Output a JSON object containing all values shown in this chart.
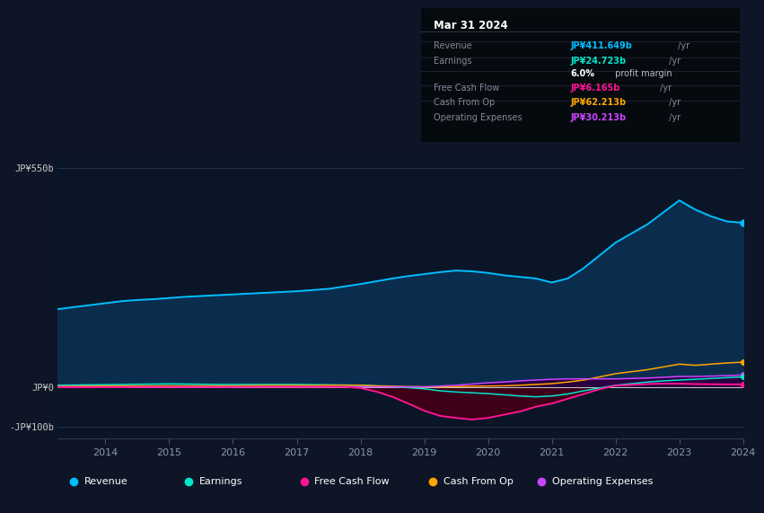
{
  "bg_color": "#0d1526",
  "plot_bg_color": "#0a1628",
  "grid_color": "#1e2f4a",
  "title_box": {
    "date": "Mar 31 2024",
    "rows": [
      {
        "label": "Revenue",
        "value": "JP¥411.649b",
        "suffix": " /yr",
        "value_color": "#00bfff"
      },
      {
        "label": "Earnings",
        "value": "JP¥24.723b",
        "suffix": " /yr",
        "value_color": "#00e5cc"
      },
      {
        "label": "",
        "value": "6.0%",
        "suffix": " profit margin",
        "value_color": "#ffffff"
      },
      {
        "label": "Free Cash Flow",
        "value": "JP¥6.165b",
        "suffix": " /yr",
        "value_color": "#ff1493"
      },
      {
        "label": "Cash From Op",
        "value": "JP¥62.213b",
        "suffix": " /yr",
        "value_color": "#ffa500"
      },
      {
        "label": "Operating Expenses",
        "value": "JP¥30.213b",
        "suffix": " /yr",
        "value_color": "#cc44ff"
      }
    ]
  },
  "years": [
    2013.25,
    2013.5,
    2013.75,
    2014.0,
    2014.25,
    2014.5,
    2014.75,
    2015.0,
    2015.25,
    2015.5,
    2015.75,
    2016.0,
    2016.25,
    2016.5,
    2016.75,
    2017.0,
    2017.25,
    2017.5,
    2017.75,
    2018.0,
    2018.25,
    2018.5,
    2018.75,
    2019.0,
    2019.25,
    2019.5,
    2019.75,
    2020.0,
    2020.25,
    2020.5,
    2020.75,
    2021.0,
    2021.25,
    2021.5,
    2021.75,
    2022.0,
    2022.25,
    2022.5,
    2022.75,
    2023.0,
    2023.25,
    2023.5,
    2023.75,
    2024.0
  ],
  "revenue": [
    195,
    200,
    205,
    210,
    215,
    218,
    220,
    223,
    226,
    228,
    230,
    232,
    234,
    236,
    238,
    240,
    243,
    246,
    252,
    258,
    265,
    272,
    278,
    283,
    288,
    292,
    290,
    286,
    280,
    276,
    272,
    262,
    272,
    298,
    330,
    362,
    385,
    408,
    438,
    468,
    445,
    428,
    415,
    412
  ],
  "earnings": [
    4,
    4.5,
    5,
    5.5,
    6,
    6.5,
    7,
    7.5,
    7,
    6.5,
    6,
    6,
    6,
    6,
    6,
    6,
    5.5,
    5,
    4.5,
    4,
    2,
    0,
    -2,
    -5,
    -10,
    -13,
    -15,
    -17,
    -20,
    -23,
    -25,
    -23,
    -18,
    -10,
    -3,
    4,
    8,
    12,
    15,
    17,
    19,
    21,
    23,
    25
  ],
  "free_cash_flow": [
    -1,
    -1,
    -1,
    -1,
    -1,
    -0.5,
    -0.5,
    -0.5,
    -0.5,
    -0.5,
    -0.5,
    -0.5,
    0,
    0,
    0,
    0,
    0,
    0,
    0,
    -3,
    -12,
    -25,
    -42,
    -60,
    -73,
    -78,
    -82,
    -78,
    -70,
    -62,
    -50,
    -42,
    -30,
    -18,
    -6,
    3,
    5,
    7,
    8,
    8,
    7,
    6.5,
    6.2,
    6.2
  ],
  "cash_from_op": [
    1,
    1.5,
    2,
    2.5,
    2.5,
    2.5,
    2.5,
    2.5,
    2.5,
    2.5,
    2.5,
    2.5,
    3,
    3.5,
    3.5,
    3.5,
    3.5,
    4,
    4,
    4,
    2.5,
    1.5,
    0.5,
    0,
    0,
    0.5,
    1.5,
    2,
    2.5,
    4,
    6,
    8,
    12,
    17,
    25,
    33,
    38,
    43,
    50,
    57,
    54,
    57,
    60,
    62
  ],
  "operating_expenses": [
    0,
    0,
    0,
    0,
    0,
    0,
    0,
    0,
    0,
    0,
    0,
    0,
    0,
    0,
    0,
    0,
    0,
    0,
    0,
    0,
    0,
    0,
    0,
    0,
    2,
    4,
    7,
    10,
    12,
    15,
    17,
    19,
    20,
    20,
    20,
    20,
    21,
    22,
    24,
    26,
    26,
    27,
    28,
    30
  ],
  "ylim": [
    -130,
    590
  ],
  "yticks_values": [
    550,
    0,
    -100
  ],
  "yticks_labels": [
    "JP¥550b",
    "JP¥0",
    "-JP¥100b"
  ],
  "xticks": [
    2014,
    2015,
    2016,
    2017,
    2018,
    2019,
    2020,
    2021,
    2022,
    2023,
    2024
  ],
  "colors": {
    "revenue": "#00bfff",
    "revenue_fill": "#0a2d4e",
    "earnings": "#00e5cc",
    "free_cash_flow": "#ff1493",
    "free_cash_flow_fill_neg": "#3d0018",
    "cash_from_op": "#ffa500",
    "operating_expenses": "#cc44ff",
    "operating_expenses_fill": "#2a0040"
  },
  "legend": [
    {
      "label": "Revenue",
      "color": "#00bfff"
    },
    {
      "label": "Earnings",
      "color": "#00e5cc"
    },
    {
      "label": "Free Cash Flow",
      "color": "#ff1493"
    },
    {
      "label": "Cash From Op",
      "color": "#ffa500"
    },
    {
      "label": "Operating Expenses",
      "color": "#cc44ff"
    }
  ]
}
